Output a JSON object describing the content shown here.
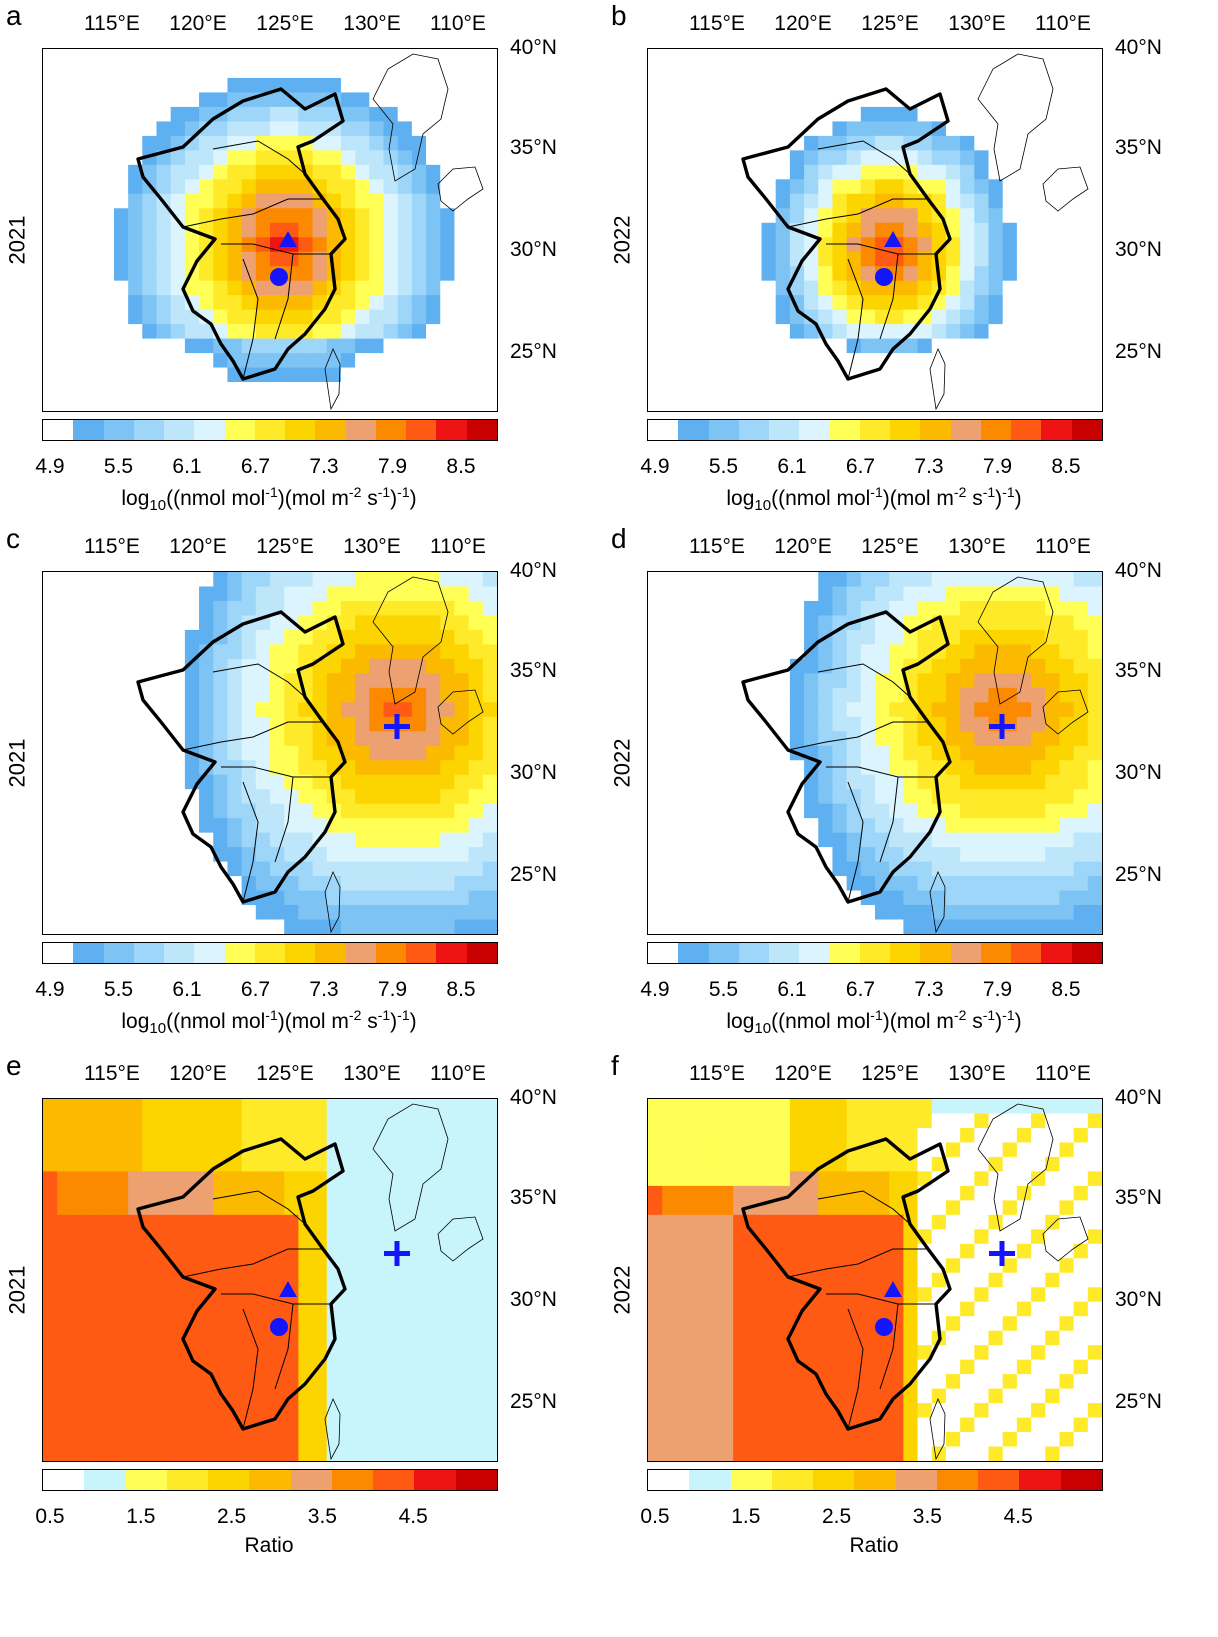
{
  "lon_labels": [
    "115°E",
    "120°E",
    "125°E",
    "130°E",
    "110°E"
  ],
  "lat_labels": [
    "40°N",
    "35°N",
    "30°N",
    "25°N"
  ],
  "sensitivity_scale": {
    "colors": [
      "#ffffff",
      "#5fb0f0",
      "#7dc4f5",
      "#9dd6f8",
      "#bde6fb",
      "#dcf4fd",
      "#ffff55",
      "#ffea2a",
      "#fcd400",
      "#fbba00",
      "#eda070",
      "#fb8a00",
      "#ff5a14",
      "#ef1414",
      "#c80000"
    ],
    "ticks": [
      "4.9",
      "5.5",
      "6.1",
      "6.7",
      "7.3",
      "7.9",
      "8.5"
    ],
    "units": "log10((nmol mol-1)(mol m-2 s-1)-1)"
  },
  "ratio_scale": {
    "colors": [
      "#ffffff",
      "#c8f4fc",
      "#ffff55",
      "#ffea2a",
      "#fcd400",
      "#fbba00",
      "#eda070",
      "#fb8a00",
      "#ff5a14",
      "#ef1414",
      "#c80000"
    ],
    "ticks": [
      "0.5",
      "1.5",
      "2.5",
      "3.5",
      "4.5"
    ],
    "units": "Ratio"
  },
  "panels": [
    {
      "label": "a",
      "year": "2021",
      "kind": "sensitivity",
      "markers": [
        "triangle",
        "circle"
      ]
    },
    {
      "label": "b",
      "year": "2022",
      "kind": "sensitivity",
      "markers": [
        "triangle",
        "circle"
      ]
    },
    {
      "label": "c",
      "year": "2021",
      "kind": "sensitivity",
      "markers": [
        "cross"
      ]
    },
    {
      "label": "d",
      "year": "2022",
      "kind": "sensitivity",
      "markers": [
        "cross"
      ]
    },
    {
      "label": "e",
      "year": "2021",
      "kind": "ratio",
      "markers": [
        "triangle",
        "circle",
        "cross"
      ]
    },
    {
      "label": "f",
      "year": "2022",
      "kind": "ratio",
      "markers": [
        "triangle",
        "circle",
        "cross"
      ]
    }
  ]
}
